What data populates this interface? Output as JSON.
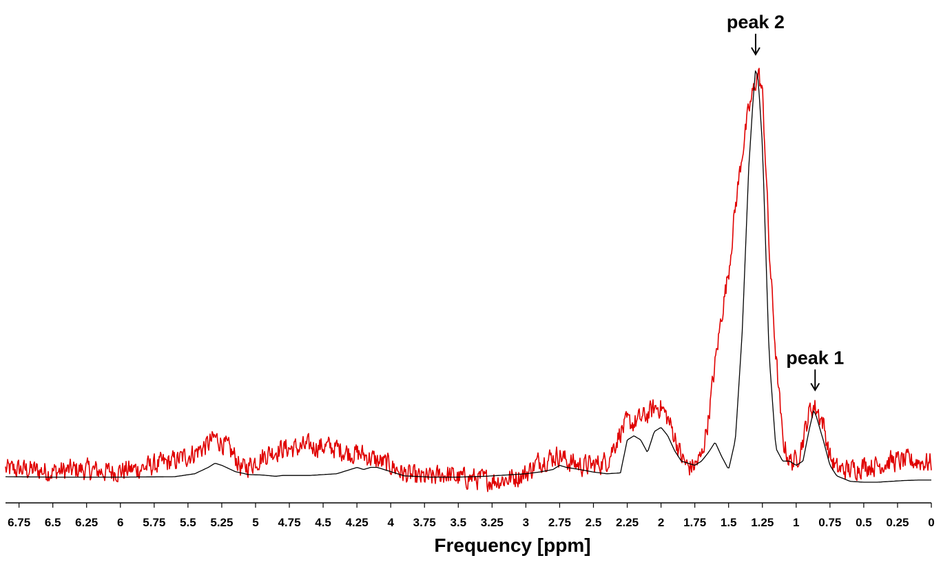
{
  "chart_data": {
    "type": "line",
    "xlabel": "Frequency [ppm]",
    "xlim": [
      6.85,
      0
    ],
    "x_reversed": true,
    "ylim": [
      0,
      1
    ],
    "grid": false,
    "tick_labels": [
      "6.75",
      "6.5",
      "6.25",
      "6",
      "5.75",
      "5.5",
      "5.25",
      "5",
      "4.75",
      "4.5",
      "4.25",
      "4",
      "3.75",
      "3.5",
      "3.25",
      "3",
      "2.75",
      "2.5",
      "2.25",
      "2",
      "1.75",
      "1.5",
      "1.25",
      "1",
      "0.75",
      "0.5",
      "0.25",
      "0"
    ],
    "annotations": [
      {
        "text": "peak 1",
        "x": 0.86,
        "y": 0.205
      },
      {
        "text": "peak 2",
        "x": 1.3,
        "y": 1.0
      }
    ],
    "series": [
      {
        "color": "#e00000",
        "noisy": true,
        "x": [
          6.85,
          6.7,
          6.5,
          6.3,
          6.1,
          5.9,
          5.75,
          5.6,
          5.45,
          5.35,
          5.3,
          5.25,
          5.15,
          5.1,
          5.0,
          4.9,
          4.8,
          4.7,
          4.6,
          4.5,
          4.4,
          4.3,
          4.2,
          4.1,
          4.0,
          3.9,
          3.8,
          3.7,
          3.6,
          3.5,
          3.4,
          3.3,
          3.2,
          3.1,
          3.0,
          2.9,
          2.8,
          2.75,
          2.7,
          2.6,
          2.5,
          2.4,
          2.3,
          2.25,
          2.2,
          2.1,
          2.05,
          2.0,
          1.95,
          1.9,
          1.85,
          1.8,
          1.75,
          1.7,
          1.65,
          1.6,
          1.55,
          1.5,
          1.45,
          1.4,
          1.35,
          1.3,
          1.28,
          1.25,
          1.22,
          1.2,
          1.15,
          1.1,
          1.05,
          1.0,
          0.95,
          0.9,
          0.87,
          0.85,
          0.8,
          0.75,
          0.7,
          0.6,
          0.5,
          0.4,
          0.3,
          0.2,
          0.1,
          0.0
        ],
        "values": [
          0.03,
          0.03,
          0.025,
          0.03,
          0.025,
          0.03,
          0.04,
          0.05,
          0.07,
          0.09,
          0.105,
          0.095,
          0.06,
          0.03,
          0.05,
          0.07,
          0.08,
          0.08,
          0.085,
          0.085,
          0.08,
          0.07,
          0.065,
          0.05,
          0.04,
          0.02,
          0.01,
          0.01,
          0.02,
          0.01,
          0.01,
          0.005,
          0.005,
          0.01,
          0.02,
          0.05,
          0.06,
          0.065,
          0.05,
          0.04,
          0.04,
          0.05,
          0.12,
          0.14,
          0.14,
          0.16,
          0.175,
          0.18,
          0.15,
          0.11,
          0.06,
          0.035,
          0.04,
          0.06,
          0.15,
          0.28,
          0.4,
          0.5,
          0.65,
          0.78,
          0.88,
          0.95,
          0.97,
          0.92,
          0.72,
          0.55,
          0.3,
          0.1,
          0.05,
          0.05,
          0.1,
          0.17,
          0.18,
          0.175,
          0.14,
          0.06,
          0.03,
          0.03,
          0.04,
          0.04,
          0.05,
          0.05,
          0.05,
          0.045
        ]
      },
      {
        "color": "#000000",
        "noisy": false,
        "x": [
          6.85,
          6.5,
          6.0,
          5.6,
          5.45,
          5.35,
          5.3,
          5.25,
          5.15,
          5.05,
          4.95,
          4.85,
          4.8,
          4.75,
          4.6,
          4.4,
          4.3,
          4.25,
          4.2,
          4.15,
          4.1,
          4.0,
          3.9,
          3.7,
          3.5,
          3.3,
          3.1,
          3.0,
          2.9,
          2.8,
          2.75,
          2.7,
          2.6,
          2.5,
          2.4,
          2.3,
          2.25,
          2.2,
          2.15,
          2.1,
          2.05,
          2.0,
          1.95,
          1.9,
          1.85,
          1.8,
          1.75,
          1.7,
          1.65,
          1.6,
          1.55,
          1.5,
          1.45,
          1.4,
          1.35,
          1.32,
          1.3,
          1.28,
          1.25,
          1.22,
          1.2,
          1.15,
          1.1,
          1.05,
          1.0,
          0.95,
          0.9,
          0.87,
          0.85,
          0.8,
          0.75,
          0.7,
          0.6,
          0.5,
          0.4,
          0.3,
          0.2,
          0.1,
          0.0
        ],
        "values": [
          0.013,
          0.012,
          0.012,
          0.013,
          0.02,
          0.035,
          0.045,
          0.04,
          0.025,
          0.018,
          0.017,
          0.014,
          0.016,
          0.016,
          0.016,
          0.02,
          0.03,
          0.035,
          0.03,
          0.035,
          0.035,
          0.025,
          0.015,
          0.012,
          0.012,
          0.014,
          0.018,
          0.02,
          0.024,
          0.03,
          0.04,
          0.035,
          0.03,
          0.024,
          0.02,
          0.022,
          0.1,
          0.11,
          0.1,
          0.07,
          0.12,
          0.13,
          0.11,
          0.075,
          0.05,
          0.045,
          0.04,
          0.05,
          0.07,
          0.095,
          0.06,
          0.03,
          0.1,
          0.35,
          0.75,
          0.9,
          0.98,
          0.95,
          0.8,
          0.5,
          0.3,
          0.08,
          0.05,
          0.05,
          0.04,
          0.05,
          0.13,
          0.17,
          0.155,
          0.1,
          0.04,
          0.015,
          0.002,
          0.0,
          0.0,
          0.002,
          0.004,
          0.005,
          0.005
        ]
      }
    ]
  }
}
